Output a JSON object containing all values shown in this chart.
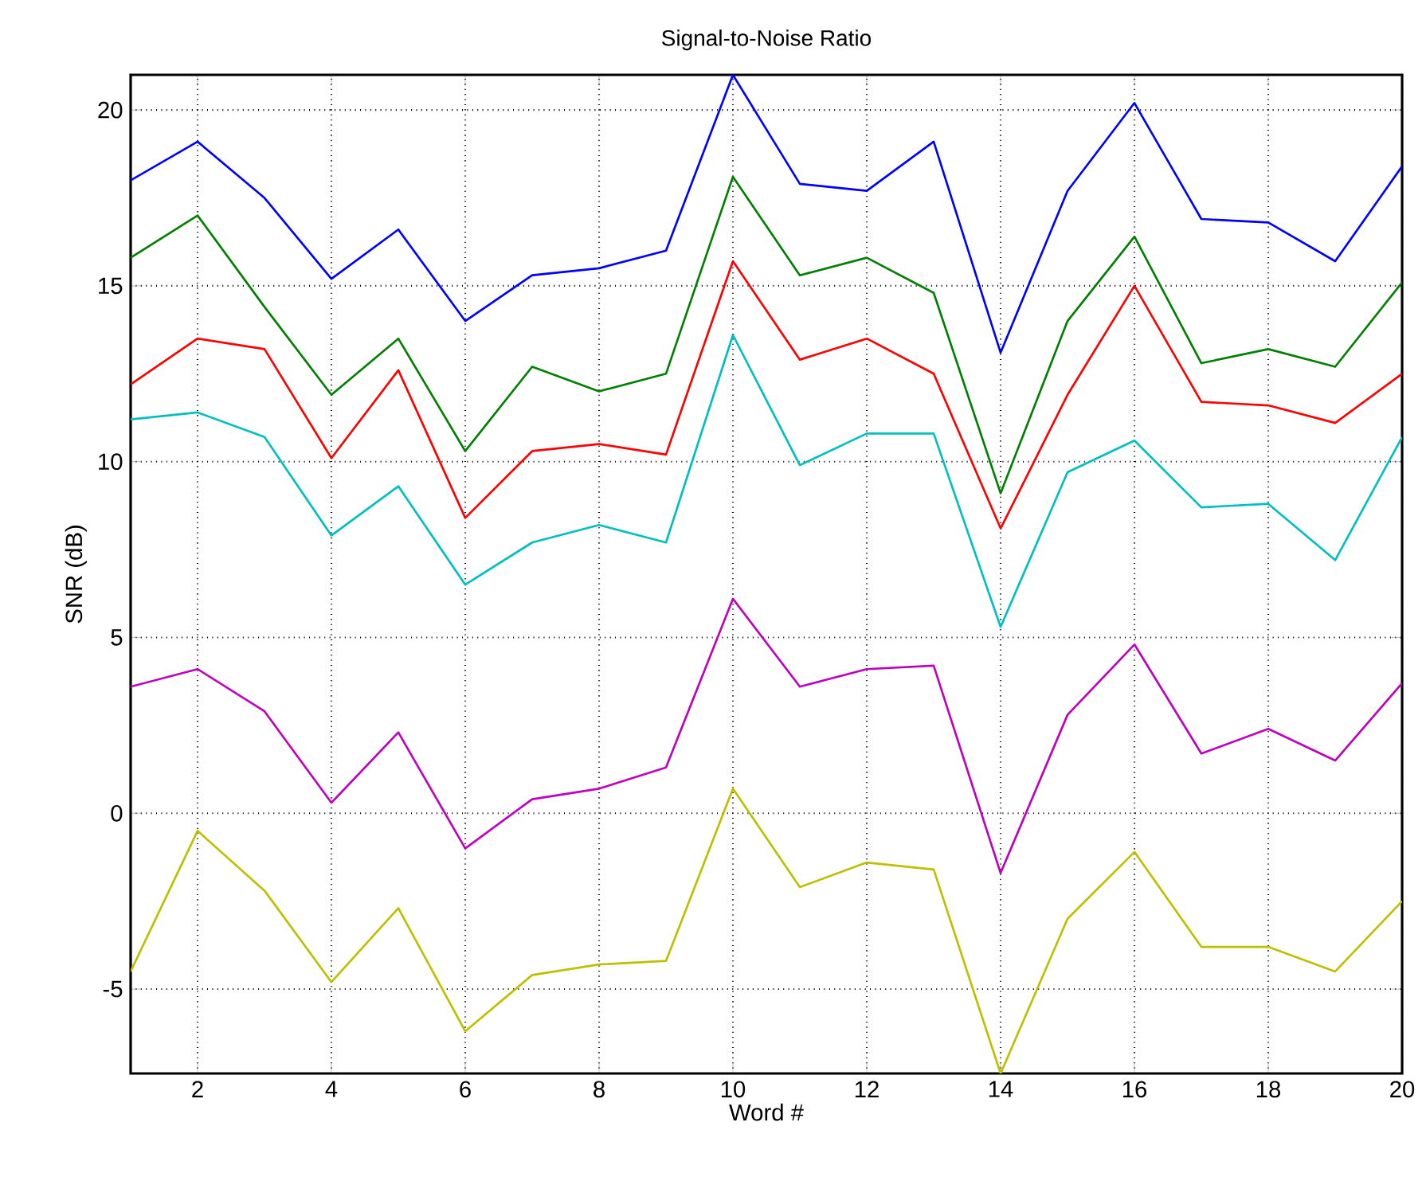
{
  "chart_data": {
    "type": "line",
    "title": "Signal-to-Noise Ratio",
    "xlabel": "Word #",
    "ylabel": "SNR (dB)",
    "x": [
      1,
      2,
      3,
      4,
      5,
      6,
      7,
      8,
      9,
      10,
      11,
      12,
      13,
      14,
      15,
      16,
      17,
      18,
      19,
      20
    ],
    "series": [
      {
        "color": "#0000ff",
        "values": [
          18.0,
          19.1,
          17.5,
          15.2,
          16.6,
          14.0,
          15.3,
          15.5,
          16.0,
          21.0,
          17.9,
          17.7,
          19.1,
          13.1,
          17.7,
          20.2,
          16.9,
          16.8,
          15.7,
          18.4
        ]
      },
      {
        "color": "#008000",
        "values": [
          15.8,
          17.0,
          14.4,
          11.9,
          13.5,
          10.3,
          12.7,
          12.0,
          12.5,
          18.1,
          15.3,
          15.8,
          14.8,
          9.1,
          14.0,
          16.4,
          12.8,
          13.2,
          12.7,
          15.1
        ]
      },
      {
        "color": "#ff0000",
        "values": [
          12.2,
          13.5,
          13.2,
          10.1,
          12.6,
          8.4,
          10.3,
          10.5,
          10.2,
          15.7,
          12.9,
          13.5,
          12.5,
          8.1,
          11.9,
          15.0,
          11.7,
          11.6,
          11.1,
          12.5
        ]
      },
      {
        "color": "#00bfbf",
        "values": [
          11.2,
          11.4,
          10.7,
          7.9,
          9.3,
          6.5,
          7.7,
          8.2,
          7.7,
          13.6,
          9.9,
          10.8,
          10.8,
          5.3,
          9.7,
          10.6,
          8.7,
          8.8,
          7.2,
          10.7
        ]
      },
      {
        "color": "#bf00bf",
        "values": [
          3.6,
          4.1,
          2.9,
          0.3,
          2.3,
          -1.0,
          0.4,
          0.7,
          1.3,
          6.1,
          3.6,
          4.1,
          4.2,
          -1.7,
          2.8,
          4.8,
          1.7,
          2.4,
          1.5,
          3.7
        ]
      },
      {
        "color": "#bfbf00",
        "values": [
          -4.5,
          -0.5,
          -2.2,
          -4.8,
          -2.7,
          -6.2,
          -4.6,
          -4.3,
          -4.2,
          0.7,
          -2.1,
          -1.4,
          -1.6,
          -7.4,
          -3.0,
          -1.1,
          -3.8,
          -3.8,
          -4.5,
          -2.5
        ]
      }
    ],
    "xlim": [
      1,
      20
    ],
    "ylim": [
      -7.4,
      21.0
    ],
    "xticks": [
      2,
      4,
      6,
      8,
      10,
      12,
      14,
      16,
      18,
      20
    ],
    "yticks": [
      -5,
      0,
      5,
      10,
      15,
      20
    ],
    "grid": true
  }
}
